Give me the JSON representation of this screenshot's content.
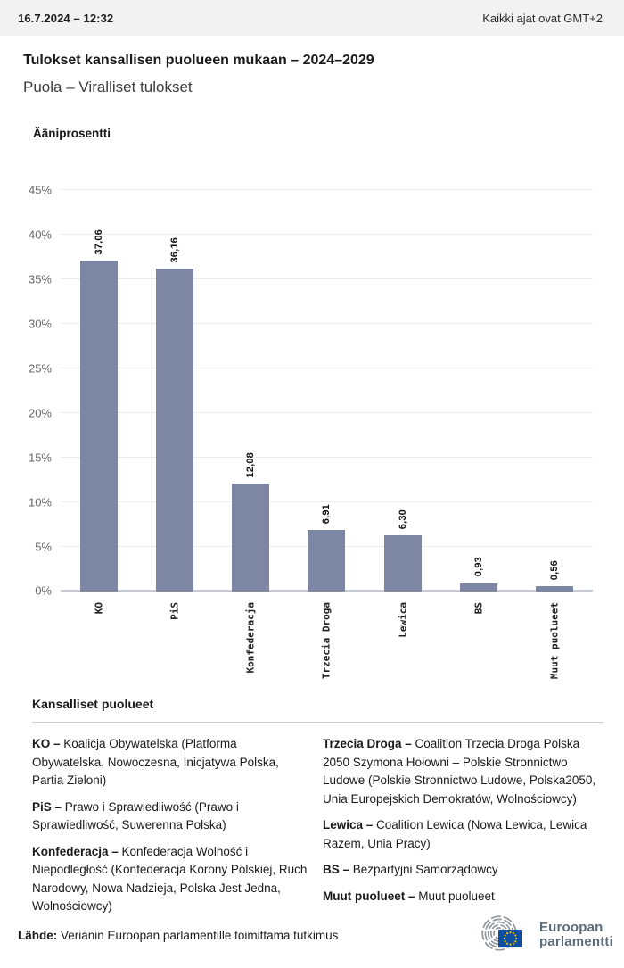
{
  "header": {
    "datetime": "16.7.2024 – 12:32",
    "timezone_note": "Kaikki ajat ovat GMT+2"
  },
  "page": {
    "title": "Tulokset kansallisen puolueen mukaan – 2024–2029",
    "subtitle": "Puola – Viralliset tulokset"
  },
  "chart_data": {
    "type": "bar",
    "title": "Ääniprosentti",
    "categories": [
      "KO",
      "PiS",
      "Konfederacja",
      "Trzecia Droga",
      "Lewica",
      "BS",
      "Muut puolueet"
    ],
    "values": [
      37.06,
      36.16,
      12.08,
      6.91,
      6.3,
      0.93,
      0.56
    ],
    "value_labels": [
      "37,06",
      "36,16",
      "12,08",
      "6,91",
      "6,30",
      "0,93",
      "0,56"
    ],
    "xlabel": "",
    "ylabel": "Ääniprosentti",
    "ylim": [
      0,
      45
    ],
    "ytick_step": 5,
    "ytick_suffix": "%",
    "grid": true,
    "legend_position": "none",
    "bar_color": "#7d87a3"
  },
  "legend": {
    "title": "Kansalliset puolueet",
    "items": [
      {
        "abbr": "KO –",
        "description": "Koalicja Obywatelska (Platforma Obywatelska, Nowoczesna, Inicjatywa Polska, Partia Zieloni)"
      },
      {
        "abbr": "PiS –",
        "description": "Prawo i Sprawiedliwość (Prawo i Sprawiedliwość, Suwerenna Polska)"
      },
      {
        "abbr": "Konfederacja –",
        "description": "Konfederacja Wolność i Niepodległość (Konfederacja Korony Polskiej, Ruch Narodowy, Nowa Nadzieja, Polska Jest Jedna, Wolnościowcy)"
      },
      {
        "abbr": "Trzecia Droga –",
        "description": "Coalition Trzecia Droga Polska 2050 Szymona Hołowni – Polskie Stronnictwo Ludowe (Polskie Stronnictwo Ludowe, Polska2050, Unia Europejskich Demokratów, Wolnościowcy)"
      },
      {
        "abbr": "Lewica –",
        "description": "Coalition Lewica (Nowa Lewica, Lewica Razem, Unia Pracy)"
      },
      {
        "abbr": "BS –",
        "description": "Bezpartyjni Samorządowcy"
      },
      {
        "abbr": "Muut puolueet –",
        "description": "Muut puolueet"
      }
    ]
  },
  "footer": {
    "source_label": "Lähde:",
    "source_text": " Verianin Euroopan parlamentille toimittama tutkimus",
    "logo_line1": "Euroopan",
    "logo_line2": "parlamentti"
  },
  "colors": {
    "bar": "#7d87a3",
    "topbar_bg": "#f2f2f2",
    "gridline": "#ececec",
    "axis_line": "#c6cbda",
    "eu_blue": "#0e4ea3",
    "eu_star": "#ffcc00",
    "logo_gray": "#8f979c"
  }
}
